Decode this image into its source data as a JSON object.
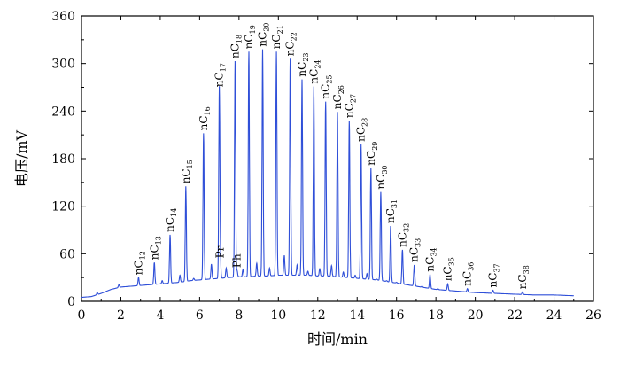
{
  "chart_data": {
    "type": "line",
    "title": "",
    "xlabel": "时间/min",
    "ylabel": "电压/mV",
    "xlim": [
      0,
      26
    ],
    "ylim": [
      0,
      360
    ],
    "xticks": [
      "0",
      "2",
      "4",
      "6",
      "8",
      "10",
      "12",
      "14",
      "16",
      "18",
      "20",
      "22",
      "24",
      "26"
    ],
    "yticks": [
      "0",
      "60",
      "120",
      "180",
      "240",
      "300",
      "360"
    ],
    "grid": false,
    "line_color": "#2f4fd8",
    "baseline": [
      [
        0,
        5
      ],
      [
        0.5,
        6
      ],
      [
        1.0,
        10
      ],
      [
        1.5,
        15
      ],
      [
        2.0,
        18
      ],
      [
        2.5,
        19
      ],
      [
        3.0,
        20
      ],
      [
        3.5,
        21
      ],
      [
        4.0,
        22
      ],
      [
        4.5,
        23
      ],
      [
        5.0,
        24
      ],
      [
        5.5,
        26
      ],
      [
        6.0,
        27
      ],
      [
        6.5,
        28
      ],
      [
        7.0,
        29
      ],
      [
        7.5,
        30
      ],
      [
        8.0,
        31
      ],
      [
        8.5,
        31
      ],
      [
        9.0,
        32
      ],
      [
        9.5,
        32
      ],
      [
        10.0,
        33
      ],
      [
        10.5,
        33
      ],
      [
        11.0,
        33
      ],
      [
        11.5,
        33
      ],
      [
        12.0,
        32
      ],
      [
        12.5,
        32
      ],
      [
        13.0,
        31
      ],
      [
        13.5,
        30
      ],
      [
        14.0,
        29
      ],
      [
        14.5,
        28
      ],
      [
        15.0,
        27
      ],
      [
        15.5,
        25
      ],
      [
        16.0,
        23
      ],
      [
        16.5,
        21
      ],
      [
        17.0,
        19
      ],
      [
        17.5,
        17
      ],
      [
        18.0,
        15
      ],
      [
        18.5,
        14
      ],
      [
        19.0,
        13
      ],
      [
        19.5,
        12
      ],
      [
        20.0,
        11
      ],
      [
        21.0,
        10
      ],
      [
        22.0,
        9
      ],
      [
        23.0,
        8
      ],
      [
        24.0,
        8
      ],
      [
        25.0,
        7
      ]
    ],
    "peaks": [
      {
        "name": "nC",
        "sub": "12",
        "x": 2.9,
        "y": 30
      },
      {
        "name": "nC",
        "sub": "13",
        "x": 3.7,
        "y": 49
      },
      {
        "name": "nC",
        "sub": "14",
        "x": 4.5,
        "y": 84
      },
      {
        "name": "nC",
        "sub": "15",
        "x": 5.3,
        "y": 145
      },
      {
        "name": "nC",
        "sub": "16",
        "x": 6.2,
        "y": 212
      },
      {
        "name": "nC",
        "sub": "17",
        "x": 7.0,
        "y": 267
      },
      {
        "name": "Pr",
        "sub": "",
        "x": 7.05,
        "y": 51
      },
      {
        "name": "nC",
        "sub": "18",
        "x": 7.8,
        "y": 303
      },
      {
        "name": "Ph",
        "sub": "",
        "x": 7.9,
        "y": 39
      },
      {
        "name": "nC",
        "sub": "19",
        "x": 8.5,
        "y": 315
      },
      {
        "name": "nC",
        "sub": "20",
        "x": 9.2,
        "y": 318
      },
      {
        "name": "nC",
        "sub": "21",
        "x": 9.9,
        "y": 315
      },
      {
        "name": "nC",
        "sub": "22",
        "x": 10.6,
        "y": 306
      },
      {
        "name": "nC",
        "sub": "23",
        "x": 11.2,
        "y": 280
      },
      {
        "name": "nC",
        "sub": "24",
        "x": 11.8,
        "y": 271
      },
      {
        "name": "nC",
        "sub": "25",
        "x": 12.4,
        "y": 252
      },
      {
        "name": "nC",
        "sub": "26",
        "x": 13.0,
        "y": 239
      },
      {
        "name": "nC",
        "sub": "27",
        "x": 13.6,
        "y": 228
      },
      {
        "name": "nC",
        "sub": "28",
        "x": 14.2,
        "y": 198
      },
      {
        "name": "nC",
        "sub": "29",
        "x": 14.7,
        "y": 168
      },
      {
        "name": "nC",
        "sub": "30",
        "x": 15.2,
        "y": 138
      },
      {
        "name": "nC",
        "sub": "31",
        "x": 15.7,
        "y": 95
      },
      {
        "name": "nC",
        "sub": "32",
        "x": 16.3,
        "y": 65
      },
      {
        "name": "nC",
        "sub": "33",
        "x": 16.9,
        "y": 46
      },
      {
        "name": "nC",
        "sub": "34",
        "x": 17.7,
        "y": 34
      },
      {
        "name": "nC",
        "sub": "35",
        "x": 18.6,
        "y": 22
      },
      {
        "name": "nC",
        "sub": "36",
        "x": 19.6,
        "y": 16
      },
      {
        "name": "nC",
        "sub": "37",
        "x": 20.9,
        "y": 14
      },
      {
        "name": "nC",
        "sub": "38",
        "x": 22.4,
        "y": 12
      }
    ],
    "minor_peaks": [
      [
        0.8,
        11
      ],
      [
        1.9,
        21
      ],
      [
        4.1,
        26
      ],
      [
        5.0,
        33
      ],
      [
        5.7,
        29
      ],
      [
        6.6,
        47
      ],
      [
        7.35,
        42
      ],
      [
        8.2,
        40
      ],
      [
        8.9,
        48
      ],
      [
        9.55,
        42
      ],
      [
        10.3,
        58
      ],
      [
        10.95,
        46
      ],
      [
        11.5,
        38
      ],
      [
        12.1,
        41
      ],
      [
        12.7,
        45
      ],
      [
        13.3,
        37
      ],
      [
        13.9,
        33
      ],
      [
        14.5,
        35
      ],
      [
        15.0,
        28
      ],
      [
        15.5,
        26
      ],
      [
        16.0,
        24
      ],
      [
        16.6,
        20
      ],
      [
        17.3,
        19
      ],
      [
        18.1,
        16
      ]
    ]
  }
}
